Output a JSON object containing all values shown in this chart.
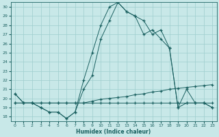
{
  "xlabel": "Humidex (Indice chaleur)",
  "bg_color": "#c8e8e8",
  "grid_color": "#9ecece",
  "line_color": "#1a6060",
  "xlim": [
    -0.5,
    23.5
  ],
  "ylim": [
    17.5,
    30.5
  ],
  "xticks": [
    0,
    1,
    2,
    3,
    4,
    5,
    6,
    7,
    8,
    9,
    10,
    11,
    12,
    13,
    14,
    15,
    16,
    17,
    18,
    19,
    20,
    21,
    22,
    23
  ],
  "yticks": [
    18,
    19,
    20,
    21,
    22,
    23,
    24,
    25,
    26,
    27,
    28,
    29,
    30
  ],
  "line1_x": [
    0,
    1,
    2,
    3,
    4,
    5,
    6,
    7,
    8,
    9,
    10,
    11,
    12,
    13,
    14,
    15,
    16,
    17,
    18,
    19,
    20,
    21,
    22,
    23
  ],
  "line1_y": [
    20.5,
    19.5,
    19.5,
    19.0,
    18.5,
    18.5,
    17.8,
    18.5,
    22.0,
    25.0,
    28.0,
    30.0,
    30.5,
    29.5,
    29.0,
    28.5,
    27.0,
    27.5,
    25.5,
    19.0,
    21.0,
    19.5,
    19.5,
    19.0
  ],
  "line2_x": [
    0,
    1,
    2,
    3,
    4,
    5,
    6,
    7,
    8,
    9,
    10,
    11,
    12,
    13,
    14,
    15,
    16,
    17,
    18,
    19,
    20,
    21,
    22,
    23
  ],
  "line2_y": [
    20.5,
    19.5,
    19.5,
    19.0,
    18.5,
    18.5,
    17.8,
    18.5,
    21.0,
    22.5,
    26.5,
    28.5,
    30.5,
    29.5,
    29.0,
    27.0,
    27.5,
    26.5,
    25.5,
    19.0,
    19.5,
    19.5,
    19.5,
    19.0
  ],
  "line3_x": [
    0,
    1,
    2,
    3,
    4,
    5,
    6,
    7,
    8,
    9,
    10,
    11,
    12,
    13,
    14,
    15,
    16,
    17,
    18,
    19,
    20,
    21,
    22,
    23
  ],
  "line3_y": [
    19.5,
    19.5,
    19.5,
    19.5,
    19.5,
    19.5,
    19.5,
    19.5,
    19.5,
    19.7,
    19.9,
    20.0,
    20.1,
    20.2,
    20.4,
    20.5,
    20.7,
    20.8,
    21.0,
    21.1,
    21.2,
    21.3,
    21.4,
    21.5
  ],
  "line4_x": [
    0,
    1,
    2,
    3,
    4,
    5,
    6,
    7,
    8,
    9,
    10,
    11,
    12,
    13,
    14,
    15,
    16,
    17,
    18,
    19,
    20,
    21,
    22,
    23
  ],
  "line4_y": [
    19.5,
    19.5,
    19.5,
    19.5,
    19.5,
    19.5,
    19.5,
    19.5,
    19.5,
    19.5,
    19.5,
    19.5,
    19.5,
    19.5,
    19.5,
    19.5,
    19.5,
    19.5,
    19.5,
    19.5,
    19.5,
    19.5,
    19.5,
    19.5
  ]
}
